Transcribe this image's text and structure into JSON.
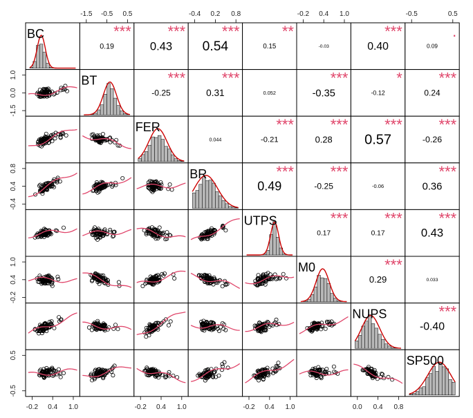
{
  "chart_data": {
    "type": "scatter",
    "variables": [
      "BC",
      "BT",
      "FER",
      "BR",
      "UTPS",
      "M0",
      "NUPS",
      "SP500"
    ],
    "correlations": [
      {
        "row": 0,
        "col": 1,
        "value": "0.19",
        "stars": "***"
      },
      {
        "row": 0,
        "col": 2,
        "value": "0.43",
        "stars": "***"
      },
      {
        "row": 0,
        "col": 3,
        "value": "0.54",
        "stars": "***"
      },
      {
        "row": 0,
        "col": 4,
        "value": "0.15",
        "stars": "**"
      },
      {
        "row": 0,
        "col": 5,
        "value": "-0.03",
        "stars": ""
      },
      {
        "row": 0,
        "col": 6,
        "value": "0.40",
        "stars": "***"
      },
      {
        "row": 0,
        "col": 7,
        "value": "0.09",
        "stars": "."
      },
      {
        "row": 1,
        "col": 2,
        "value": "-0.25",
        "stars": "***"
      },
      {
        "row": 1,
        "col": 3,
        "value": "0.31",
        "stars": "***"
      },
      {
        "row": 1,
        "col": 4,
        "value": "0.052",
        "stars": ""
      },
      {
        "row": 1,
        "col": 5,
        "value": "-0.35",
        "stars": "***"
      },
      {
        "row": 1,
        "col": 6,
        "value": "-0.12",
        "stars": "*"
      },
      {
        "row": 1,
        "col": 7,
        "value": "0.24",
        "stars": "***"
      },
      {
        "row": 2,
        "col": 3,
        "value": "0.044",
        "stars": ""
      },
      {
        "row": 2,
        "col": 4,
        "value": "-0.21",
        "stars": "***"
      },
      {
        "row": 2,
        "col": 5,
        "value": "0.28",
        "stars": "***"
      },
      {
        "row": 2,
        "col": 6,
        "value": "0.57",
        "stars": "***"
      },
      {
        "row": 2,
        "col": 7,
        "value": "-0.26",
        "stars": "***"
      },
      {
        "row": 3,
        "col": 4,
        "value": "0.49",
        "stars": "***"
      },
      {
        "row": 3,
        "col": 5,
        "value": "-0.25",
        "stars": "***"
      },
      {
        "row": 3,
        "col": 6,
        "value": "-0.06",
        "stars": ""
      },
      {
        "row": 3,
        "col": 7,
        "value": "0.36",
        "stars": "***"
      },
      {
        "row": 4,
        "col": 5,
        "value": "0.17",
        "stars": "***"
      },
      {
        "row": 4,
        "col": 6,
        "value": "0.17",
        "stars": "***"
      },
      {
        "row": 4,
        "col": 7,
        "value": "0.43",
        "stars": "***"
      },
      {
        "row": 5,
        "col": 6,
        "value": "0.29",
        "stars": "***"
      },
      {
        "row": 5,
        "col": 7,
        "value": "0.033",
        "stars": ""
      },
      {
        "row": 6,
        "col": 7,
        "value": "-0.40",
        "stars": "***"
      }
    ],
    "axis_ticks": {
      "top": [
        {
          "col": 1,
          "labels": [
            "-1.5",
            "-0.5",
            "0.5"
          ]
        },
        {
          "col": 3,
          "labels": [
            "-0.4",
            "0.2",
            "0.8"
          ]
        },
        {
          "col": 5,
          "labels": [
            "-0.2",
            "0.4",
            "1.0"
          ]
        },
        {
          "col": 7,
          "labels": [
            "-0.5",
            "0.5"
          ]
        }
      ],
      "bottom": [
        {
          "col": 0,
          "labels": [
            "-0.2",
            "0.4",
            "1.0"
          ]
        },
        {
          "col": 2,
          "labels": [
            "-0.2",
            "0.4",
            "1.0"
          ]
        },
        {
          "col": 4,
          "labels": [
            "-0.2",
            "0.4",
            "1.0"
          ]
        },
        {
          "col": 6,
          "labels": [
            "0.0",
            "0.4",
            "0.8"
          ]
        }
      ],
      "left": [
        {
          "row": 1,
          "labels": [
            "1.0",
            "0.0",
            "-1.5"
          ]
        },
        {
          "row": 3,
          "labels": [
            "0.8",
            "0.4",
            "-0.4"
          ]
        },
        {
          "row": 5,
          "labels": [
            "1.0",
            "0.4",
            "-0.2"
          ]
        },
        {
          "row": 7,
          "labels": [
            "0.5",
            "-0.5"
          ]
        }
      ]
    },
    "grid": false,
    "colors": {
      "stars": "#e0456a",
      "smoother": "#e0456a",
      "histogram": "#b8b8b8",
      "density": "#cc0000"
    }
  }
}
